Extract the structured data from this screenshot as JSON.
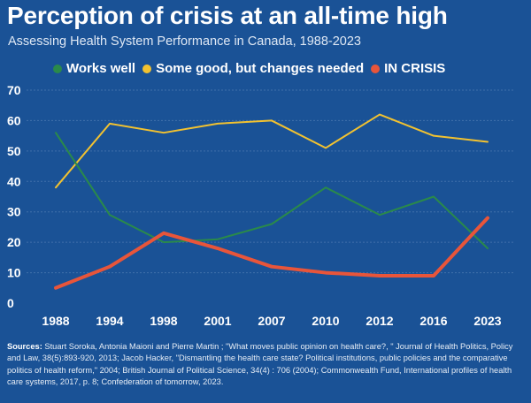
{
  "title": "Perception of crisis at an all-time high",
  "subtitle": "Assessing Health System Performance in Canada, 1988-2023",
  "legend": [
    {
      "label": "Works well",
      "color": "#2a8a4a"
    },
    {
      "label": "Some good, but changes needed",
      "color": "#f2c230"
    },
    {
      "label": "IN CRISIS",
      "color": "#e8553a"
    }
  ],
  "chart_data": {
    "type": "line",
    "categories": [
      "1988",
      "1994",
      "1998",
      "2001",
      "2007",
      "2010",
      "2012",
      "2016",
      "2023"
    ],
    "ylim": [
      0,
      70
    ],
    "yticks": [
      0,
      10,
      20,
      30,
      40,
      50,
      60,
      70
    ],
    "grid": true,
    "series": [
      {
        "name": "Works well",
        "color": "#2a8a4a",
        "values": [
          56,
          29,
          20,
          21,
          26,
          38,
          29,
          35,
          18
        ]
      },
      {
        "name": "Some good, but changes needed",
        "color": "#f2c230",
        "values": [
          38,
          59,
          56,
          59,
          60,
          51,
          62,
          55,
          53
        ]
      },
      {
        "name": "IN CRISIS",
        "color": "#e8553a",
        "values": [
          5,
          12,
          23,
          18,
          12,
          10,
          9,
          9,
          28
        ]
      }
    ]
  },
  "sources": {
    "label": "Sources:",
    "text": "Stuart Soroka, Antonia Maioni and Pierre Martin ; \"What moves public opinion on health care?, \" Journal of Health Politics, Policy and Law, 38(5):893-920, 2013; Jacob Hacker, \"Dismantling the health care state? Political institutions, public policies and the comparative politics of health reform,\" 2004; British Journal of Political Science, 34(4) : 706 (2004); Commonwealth Fund, International profiles of health care systems, 2017, p. 8; Confederation of tomorrow, 2023."
  }
}
